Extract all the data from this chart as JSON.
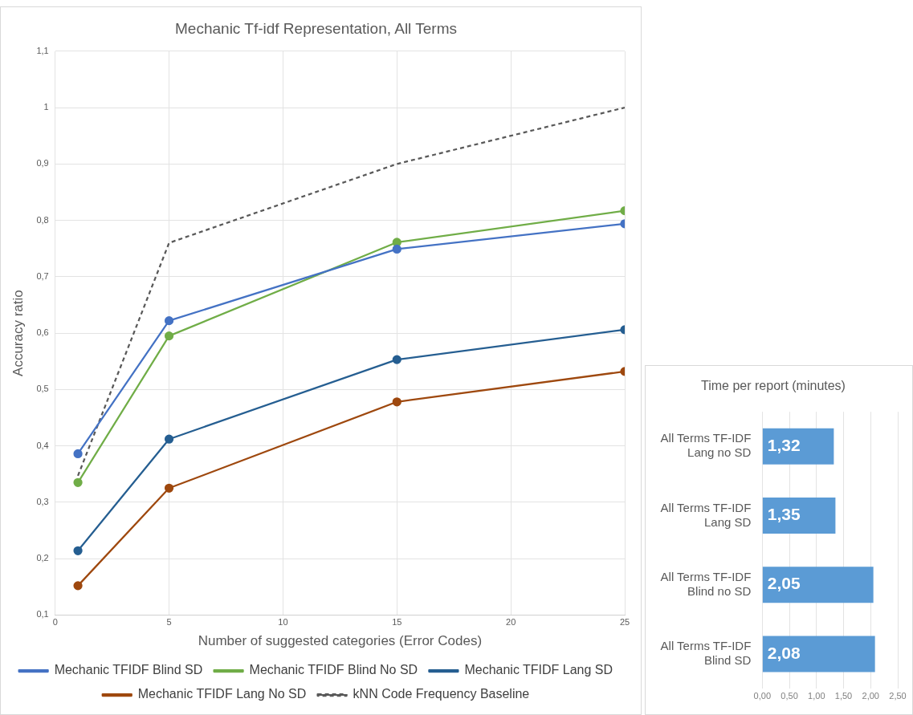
{
  "chart_data": [
    {
      "type": "line",
      "title": "Mechanic Tf-idf Representation, All Terms",
      "xlabel": "Number of suggested categories (Error Codes)",
      "ylabel": "Accuracy ratio",
      "x": [
        1,
        5,
        15,
        25
      ],
      "series": [
        {
          "name": "Mechanic TFIDF Blind SD",
          "color": "#4472c4",
          "values": [
            0.386,
            0.622,
            0.749,
            0.794
          ]
        },
        {
          "name": "Mechanic TFIDF Blind No SD",
          "color": "#70ad47",
          "values": [
            0.335,
            0.595,
            0.761,
            0.817
          ]
        },
        {
          "name": "Mechanic TFIDF Lang SD",
          "color": "#255e91",
          "values": [
            0.214,
            0.412,
            0.553,
            0.606
          ]
        },
        {
          "name": "Mechanic TFIDF Lang No SD",
          "color": "#9e480e",
          "values": [
            0.152,
            0.325,
            0.478,
            0.532
          ]
        },
        {
          "name": "kNN Code Frequency Baseline",
          "color": "#595959",
          "values": [
            0.347,
            0.76,
            0.9,
            1
          ],
          "line_style": "dashed",
          "marker": "none"
        }
      ],
      "xlim": [
        0,
        25
      ],
      "xticks": [
        0,
        5,
        10,
        15,
        20,
        25
      ],
      "ylim": [
        0.1,
        1.1
      ],
      "yticks": [
        {
          "value": 0.1,
          "label": "0,1"
        },
        {
          "value": 0.2,
          "label": "0,2"
        },
        {
          "value": 0.3,
          "label": "0,3"
        },
        {
          "value": 0.4,
          "label": "0,4"
        },
        {
          "value": 0.5,
          "label": "0,5"
        },
        {
          "value": 0.6,
          "label": "0,6"
        },
        {
          "value": 0.7,
          "label": "0,7"
        },
        {
          "value": 0.8,
          "label": "0,8"
        },
        {
          "value": 0.9,
          "label": "0,9"
        },
        1,
        {
          "value": 1.1,
          "label": "1,1"
        }
      ],
      "grid": true,
      "legend": "bottom",
      "marker": "circle",
      "line_style": "solid"
    },
    {
      "type": "bar",
      "orientation": "horizontal",
      "title": "Time per report (minutes)",
      "categories": [
        "All Terms TF-IDF Lang no SD",
        "All Terms TF-IDF Lang SD",
        "All Terms TF-IDF Blind no SD",
        "All Terms TF-IDF Blind SD"
      ],
      "values": [
        1.32,
        1.35,
        2.05,
        2.08
      ],
      "value_labels": [
        "1,32",
        "1,35",
        "2,05",
        "2,08"
      ],
      "color": "#5b9bd5",
      "xlim": [
        0,
        2.5
      ],
      "xticks": [
        {
          "value": 0,
          "label": "0,00"
        },
        {
          "value": 0.5,
          "label": "0,50"
        },
        {
          "value": 1,
          "label": "1,00"
        },
        {
          "value": 1.5,
          "label": "1,50"
        },
        {
          "value": 2,
          "label": "2,00"
        },
        {
          "value": 2.5,
          "label": "2,50"
        }
      ],
      "grid": "x",
      "legend": false
    }
  ]
}
